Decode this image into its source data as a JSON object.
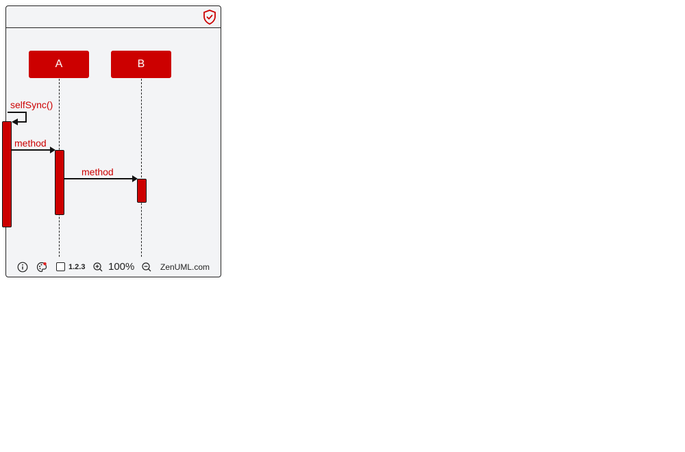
{
  "diagram": {
    "participants": [
      {
        "name": "A"
      },
      {
        "name": "B"
      }
    ],
    "messages": [
      {
        "label": "selfSync()",
        "from": "caller",
        "to": "caller"
      },
      {
        "label": "method",
        "from": "caller",
        "to": "A"
      },
      {
        "label": "method",
        "from": "A",
        "to": "B"
      }
    ]
  },
  "toolbar": {
    "numbering_label": "1.2.3",
    "zoom_level": "100%",
    "brand": "ZenUML.com"
  },
  "colors": {
    "accent": "#cc0000",
    "background": "#f3f4f6",
    "line": "#111111"
  }
}
